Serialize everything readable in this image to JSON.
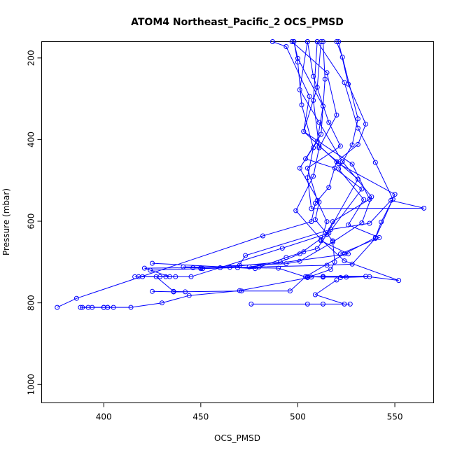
{
  "chart_data": {
    "type": "line",
    "title": "ATOM4 Northeast_Pacific_2 OCS_PMSD",
    "xlabel": "OCS_PMSD",
    "ylabel": "Pressure (mbar)",
    "xlim": [
      368,
      570
    ],
    "ylim": [
      1045,
      160
    ],
    "y_inverted": true,
    "xticks": [
      400,
      450,
      500,
      550
    ],
    "yticks": [
      200,
      400,
      600,
      800,
      1000
    ],
    "grid": false,
    "legend": "none",
    "marker": "open-circle",
    "color": "#0000ff",
    "series": [
      {
        "points": [
          [
            376,
            811
          ],
          [
            386,
            789
          ],
          [
            482,
            636
          ],
          [
            507,
            601
          ],
          [
            509,
            556
          ],
          [
            516,
            517
          ],
          [
            520,
            454
          ],
          [
            531,
            412
          ],
          [
            535,
            362
          ],
          [
            526,
            264
          ],
          [
            521,
            160
          ]
        ]
      },
      {
        "points": [
          [
            388,
            811
          ],
          [
            400,
            811
          ],
          [
            414,
            811
          ],
          [
            430,
            800
          ],
          [
            444,
            782
          ],
          [
            470,
            770
          ],
          [
            507,
            737
          ],
          [
            513,
            735
          ],
          [
            535,
            735
          ],
          [
            552,
            745
          ],
          [
            524,
            697
          ],
          [
            512,
            645
          ],
          [
            499,
            574
          ],
          [
            508,
            490
          ],
          [
            511,
            420
          ],
          [
            520,
            340
          ],
          [
            515,
            236
          ],
          [
            497,
            160
          ]
        ]
      },
      {
        "points": [
          [
            389,
            811
          ],
          [
            402,
            811
          ],
          [
            405,
            811
          ],
          [
            402,
            811
          ],
          [
            394,
            811
          ],
          [
            392,
            811
          ],
          [
            400,
            811
          ]
        ]
      },
      {
        "points": [
          [
            425,
            772
          ],
          [
            436,
            773
          ],
          [
            471,
            771
          ],
          [
            496,
            771
          ],
          [
            504,
            736
          ],
          [
            524,
            680
          ],
          [
            540,
            640
          ],
          [
            543,
            602
          ],
          [
            549,
            546
          ],
          [
            540,
            456
          ],
          [
            531,
            372
          ],
          [
            524,
            260
          ],
          [
            510,
            160
          ]
        ]
      },
      {
        "points": [
          [
            424,
            720
          ],
          [
            451,
            716
          ],
          [
            480,
            712
          ],
          [
            515,
            708
          ],
          [
            528,
            705
          ],
          [
            540,
            642
          ],
          [
            550,
            534
          ],
          [
            521,
            459
          ],
          [
            503,
            380
          ],
          [
            506,
            294
          ],
          [
            494,
            172
          ],
          [
            487,
            160
          ]
        ]
      },
      {
        "points": [
          [
            418,
            736
          ],
          [
            429,
            736
          ],
          [
            434,
            736
          ],
          [
            421,
            715
          ],
          [
            446,
            714
          ],
          [
            450,
            714
          ],
          [
            470,
            708
          ],
          [
            494,
            704
          ],
          [
            501,
            698
          ],
          [
            518,
            651
          ],
          [
            533,
            604
          ],
          [
            538,
            540
          ],
          [
            523,
            454
          ],
          [
            511,
            358
          ],
          [
            501,
            278
          ],
          [
            505,
            160
          ]
        ]
      },
      {
        "points": [
          [
            436,
            773
          ],
          [
            442,
            773
          ],
          [
            436,
            772
          ],
          [
            427,
            736
          ],
          [
            445,
            736
          ],
          [
            492,
            666
          ],
          [
            516,
            629
          ],
          [
            533,
            521
          ],
          [
            519,
            470
          ],
          [
            504,
            447
          ],
          [
            512,
            387
          ],
          [
            514,
            252
          ],
          [
            513,
            160
          ]
        ]
      },
      {
        "points": [
          [
            432,
            736
          ],
          [
            420,
            736
          ],
          [
            416,
            736
          ],
          [
            437,
            736
          ]
        ]
      },
      {
        "points": [
          [
            425,
            703
          ],
          [
            478,
            716
          ],
          [
            494,
            689
          ],
          [
            503,
            675
          ],
          [
            510,
            667
          ],
          [
            515,
            632
          ],
          [
            518,
            601
          ],
          [
            537,
            546
          ],
          [
            528,
            460
          ],
          [
            503,
            380
          ],
          [
            510,
            272
          ],
          [
            512,
            160
          ]
        ]
      },
      {
        "points": [
          [
            450,
            716
          ],
          [
            460,
            714
          ],
          [
            491,
            700
          ],
          [
            501,
            680
          ],
          [
            515,
            632
          ],
          [
            531,
            497
          ],
          [
            511,
            416
          ],
          [
            508,
            304
          ],
          [
            510,
            160
          ]
        ]
      },
      {
        "points": [
          [
            469,
            714
          ],
          [
            473,
            684
          ],
          [
            517,
            620
          ],
          [
            537,
            605
          ],
          [
            548,
            549
          ],
          [
            565,
            568
          ],
          [
            507,
            569
          ],
          [
            505,
            493
          ],
          [
            508,
            420
          ],
          [
            502,
            315
          ],
          [
            500,
            210
          ],
          [
            498,
            160
          ]
        ]
      },
      {
        "points": [
          [
            441,
            712
          ],
          [
            465,
            713
          ],
          [
            490,
            715
          ],
          [
            505,
            738
          ],
          [
            517,
            718
          ],
          [
            519,
            700
          ],
          [
            518,
            648
          ],
          [
            509,
            596
          ],
          [
            511,
            553
          ],
          [
            501,
            470
          ],
          [
            510,
            404
          ],
          [
            513,
            318
          ],
          [
            500,
            201
          ],
          [
            498,
            160
          ]
        ]
      },
      {
        "points": [
          [
            476,
            803
          ],
          [
            527,
            803
          ],
          [
            513,
            803
          ],
          [
            505,
            803
          ],
          [
            524,
            803
          ],
          [
            509,
            780
          ],
          [
            520,
            744
          ]
        ]
      },
      {
        "points": [
          [
            522,
            738
          ],
          [
            537,
            736
          ],
          [
            505,
            736
          ],
          [
            513,
            737
          ],
          [
            525,
            737
          ]
        ]
      },
      {
        "points": [
          [
            522,
            680
          ],
          [
            542,
            640
          ],
          [
            526,
            609
          ],
          [
            534,
            547
          ],
          [
            521,
            472
          ],
          [
            528,
            413
          ],
          [
            531,
            349
          ],
          [
            523,
            198
          ],
          [
            520,
            160
          ]
        ]
      },
      {
        "points": [
          [
            475,
            712
          ],
          [
            526,
            680
          ],
          [
            512,
            648
          ],
          [
            515,
            601
          ],
          [
            510,
            549
          ],
          [
            505,
            470
          ],
          [
            522,
            416
          ],
          [
            516,
            358
          ],
          [
            508,
            245
          ],
          [
            505,
            160
          ]
        ]
      }
    ]
  }
}
